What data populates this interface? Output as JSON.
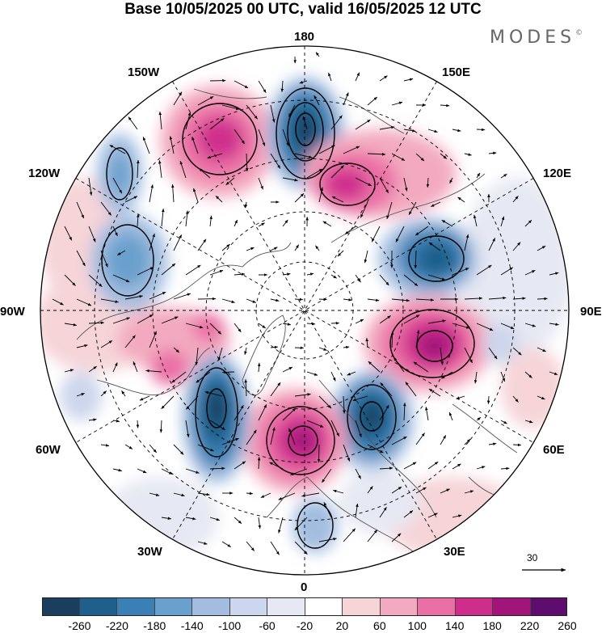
{
  "title": "Base 10/05/2025 00 UTC, valid 16/05/2025 12 UTC",
  "brand": "MODES",
  "brand_mark": "©",
  "map": {
    "projection": "north-polar-stereographic",
    "meridian_labels": {
      "top": "180",
      "top_left": "150W",
      "top_right": "150E",
      "upper_left": "120W",
      "upper_right": "120E",
      "left": "90W",
      "right": "90E",
      "lower_left": "60W",
      "lower_right": "60E",
      "bottom_left": "30W",
      "bottom_right": "30E",
      "bottom": "0"
    },
    "wind_reference_value": "30",
    "colors": {
      "ocean_bg": "#ffffff",
      "land_line": "#555555",
      "grid": "#000000"
    }
  },
  "anomaly_centers": [
    {
      "sign": "negative",
      "strength": 5,
      "location": "Bering Strait / Chukchi"
    },
    {
      "sign": "positive",
      "strength": 3,
      "location": "Gulf of Alaska"
    },
    {
      "sign": "negative",
      "strength": 2,
      "location": "Western Canada coast"
    },
    {
      "sign": "negative",
      "strength": 2,
      "location": "Western Canada interior"
    },
    {
      "sign": "positive",
      "strength": 3,
      "location": "Eastern Siberia"
    },
    {
      "sign": "negative",
      "strength": 4,
      "location": "Central Siberia"
    },
    {
      "sign": "positive",
      "strength": 5,
      "location": "Western Siberia"
    },
    {
      "sign": "negative",
      "strength": 5,
      "location": "Northern Russia / Barents"
    },
    {
      "sign": "positive",
      "strength": 5,
      "location": "Northeast Atlantic"
    },
    {
      "sign": "negative",
      "strength": 5,
      "location": "North Atlantic / Greenland"
    },
    {
      "sign": "positive",
      "strength": 2,
      "location": "Hudson Bay"
    },
    {
      "sign": "negative",
      "strength": 2,
      "location": "Europe"
    }
  ],
  "colorbar": {
    "ticks": [
      "-260",
      "-220",
      "-180",
      "-140",
      "-100",
      "-60",
      "-20",
      "20",
      "60",
      "100",
      "140",
      "180",
      "220",
      "260"
    ],
    "colors": [
      "#1a3f5e",
      "#1f5f8b",
      "#3a80b4",
      "#6aa0cd",
      "#a3bde0",
      "#ccd6ec",
      "#e6e8f3",
      "#ffffff",
      "#f6d4d8",
      "#f3aac0",
      "#ea6fa6",
      "#cf2d8c",
      "#a1147a",
      "#5e0d6e"
    ]
  }
}
